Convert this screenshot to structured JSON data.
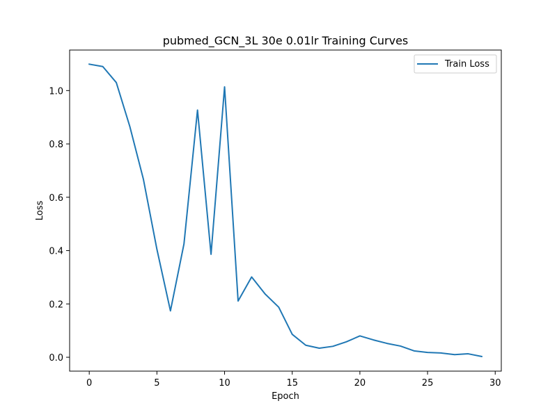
{
  "chart_data": {
    "type": "line",
    "title": "pubmed_GCN_3L  30e  0.01lr  Training Curves",
    "xlabel": "Epoch",
    "ylabel": "Loss",
    "xlim": [
      -1.45,
      30.45
    ],
    "ylim": [
      -0.052,
      1.152
    ],
    "xticks": [
      0,
      5,
      10,
      15,
      20,
      25,
      30
    ],
    "xtick_labels": [
      "0",
      "5",
      "10",
      "15",
      "20",
      "25",
      "30"
    ],
    "yticks": [
      0.0,
      0.2,
      0.4,
      0.6,
      0.8,
      1.0
    ],
    "ytick_labels": [
      "0.0",
      "0.2",
      "0.4",
      "0.6",
      "0.8",
      "1.0"
    ],
    "grid": false,
    "legend_position": "top-right",
    "series": [
      {
        "name": "Train Loss",
        "color": "#1f77b4",
        "x": [
          0,
          1,
          2,
          3,
          4,
          5,
          6,
          7,
          8,
          9,
          10,
          11,
          12,
          13,
          14,
          15,
          16,
          17,
          18,
          19,
          20,
          21,
          22,
          23,
          24,
          25,
          26,
          27,
          28,
          29
        ],
        "y": [
          1.099,
          1.09,
          1.03,
          0.865,
          0.668,
          0.405,
          0.174,
          0.425,
          0.927,
          0.386,
          1.014,
          0.211,
          0.301,
          0.237,
          0.188,
          0.086,
          0.045,
          0.034,
          0.041,
          0.058,
          0.08,
          0.065,
          0.052,
          0.042,
          0.024,
          0.018,
          0.016,
          0.01,
          0.013,
          0.003
        ]
      }
    ]
  }
}
